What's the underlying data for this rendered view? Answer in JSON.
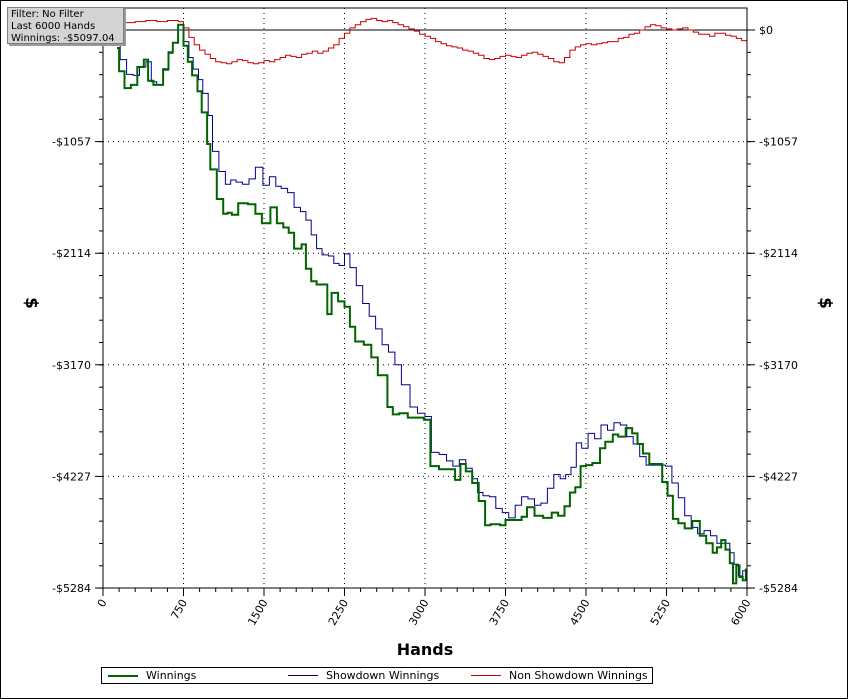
{
  "info": {
    "filter": "Filter: No Filter",
    "hands": "Last 6000 Hands",
    "winnings": "Winnings: -$5097.04"
  },
  "colors": {
    "winnings": "#006400",
    "showdown": "#00008b",
    "non_showdown": "#cc0000"
  },
  "chart_data": {
    "type": "line",
    "xlabel": "Hands",
    "ylabel": "$",
    "xlim": [
      0,
      6000
    ],
    "ylim": [
      -5284,
      0
    ],
    "x_ticks": [
      0,
      750,
      1500,
      2250,
      3000,
      3750,
      4500,
      5250,
      6000
    ],
    "x_tick_labels": [
      "0",
      "750",
      "1500",
      "2250",
      "3000",
      "3750",
      "4500",
      "5250",
      "6000"
    ],
    "y_ticks": [
      0,
      -1057,
      -2114,
      -3170,
      -4227,
      -5284
    ],
    "y_tick_labels": [
      "$0",
      "-$1057",
      "-$2114",
      "-$3170",
      "-$4227",
      "-$5284"
    ],
    "grid": true,
    "legend_position": "bottom",
    "series": [
      {
        "name": "Winnings",
        "x": [
          130,
          150,
          200,
          260,
          320,
          380,
          420,
          470,
          560,
          610,
          650,
          700,
          750,
          790,
          830,
          880,
          920,
          970,
          1000,
          1060,
          1120,
          1160,
          1200,
          1260,
          1350,
          1420,
          1480,
          1560,
          1620,
          1680,
          1730,
          1780,
          1850,
          1890,
          1940,
          1990,
          2050,
          2090,
          2130,
          2190,
          2250,
          2300,
          2350,
          2430,
          2500,
          2560,
          2650,
          2700,
          2760,
          2840,
          2920,
          2990,
          3050,
          3130,
          3210,
          3280,
          3330,
          3380,
          3440,
          3500,
          3560,
          3610,
          3650,
          3700,
          3750,
          3820,
          3900,
          3950,
          4020,
          4100,
          4180,
          4240,
          4300,
          4350,
          4400,
          4450,
          4500,
          4560,
          4630,
          4680,
          4750,
          4800,
          4870,
          4930,
          4980,
          5030,
          5090,
          5150,
          5210,
          5260,
          5310,
          5360,
          5420,
          5490,
          5560,
          5620,
          5680,
          5720,
          5760,
          5800,
          5840,
          5870,
          5900,
          5930,
          5960,
          5990
        ],
        "y": [
          -170,
          -390,
          -550,
          -520,
          -350,
          -280,
          -480,
          -520,
          -370,
          -210,
          -120,
          50,
          -150,
          -300,
          -430,
          -580,
          -780,
          -1080,
          -1320,
          -1600,
          -1740,
          -1730,
          -1750,
          -1640,
          -1650,
          -1740,
          -1830,
          -1680,
          -1830,
          -1870,
          -1920,
          -2070,
          -2030,
          -2260,
          -2380,
          -2410,
          -2410,
          -2690,
          -2490,
          -2570,
          -2620,
          -2810,
          -2950,
          -2980,
          -3100,
          -3270,
          -3570,
          -3640,
          -3630,
          -3670,
          -3670,
          -3690,
          -4130,
          -4160,
          -4160,
          -4260,
          -4110,
          -4180,
          -4290,
          -4460,
          -4690,
          -4680,
          -4680,
          -4690,
          -4640,
          -4640,
          -4610,
          -4520,
          -4600,
          -4620,
          -4570,
          -4600,
          -4510,
          -4380,
          -4330,
          -4130,
          -4120,
          -4100,
          -3960,
          -3900,
          -3830,
          -3850,
          -3770,
          -3820,
          -3920,
          -4010,
          -4110,
          -4110,
          -4280,
          -4410,
          -4630,
          -4670,
          -4720,
          -4650,
          -4790,
          -4860,
          -4950,
          -4900,
          -4830,
          -4920,
          -5050,
          -5240,
          -5070,
          -5180,
          -5210,
          -5100
        ]
      },
      {
        "name": "Showdown Winnings",
        "x": [
          130,
          160,
          220,
          280,
          340,
          400,
          450,
          500,
          560,
          610,
          650,
          700,
          750,
          800,
          840,
          890,
          930,
          980,
          1020,
          1080,
          1140,
          1190,
          1240,
          1300,
          1360,
          1420,
          1490,
          1550,
          1610,
          1660,
          1720,
          1780,
          1840,
          1890,
          1940,
          1990,
          2040,
          2100,
          2150,
          2200,
          2250,
          2300,
          2360,
          2420,
          2480,
          2540,
          2600,
          2660,
          2720,
          2780,
          2860,
          2930,
          3000,
          3060,
          3130,
          3200,
          3260,
          3320,
          3380,
          3440,
          3490,
          3540,
          3600,
          3660,
          3720,
          3780,
          3840,
          3900,
          3960,
          4020,
          4080,
          4140,
          4200,
          4260,
          4310,
          4360,
          4410,
          4460,
          4520,
          4580,
          4640,
          4700,
          4760,
          4820,
          4880,
          4940,
          5000,
          5060,
          5120,
          5180,
          5240,
          5300,
          5360,
          5420,
          5480,
          5540,
          5600,
          5660,
          5720,
          5780,
          5840,
          5880,
          5920,
          5960,
          6000
        ],
        "y": [
          -100,
          -280,
          -420,
          -430,
          -350,
          -300,
          -490,
          -520,
          -380,
          -220,
          -120,
          0,
          -110,
          -260,
          -370,
          -470,
          -600,
          -810,
          -1150,
          -1340,
          -1460,
          -1420,
          -1440,
          -1460,
          -1410,
          -1300,
          -1470,
          -1390,
          -1480,
          -1500,
          -1540,
          -1680,
          -1720,
          -1800,
          -1940,
          -2070,
          -2130,
          -2140,
          -2210,
          -2230,
          -2120,
          -2250,
          -2420,
          -2590,
          -2710,
          -2830,
          -2980,
          -3050,
          -3170,
          -3360,
          -3570,
          -3630,
          -3660,
          -4000,
          -4020,
          -4080,
          -4130,
          -4070,
          -4150,
          -4250,
          -4380,
          -4410,
          -4420,
          -4530,
          -4570,
          -4620,
          -4500,
          -4420,
          -4440,
          -4500,
          -4480,
          -4340,
          -4210,
          -4250,
          -4210,
          -4140,
          -3910,
          -3960,
          -3820,
          -3870,
          -3740,
          -3790,
          -3720,
          -3740,
          -3850,
          -3920,
          -4040,
          -4120,
          -4120,
          -4120,
          -4130,
          -4290,
          -4430,
          -4600,
          -4710,
          -4770,
          -4740,
          -4790,
          -4860,
          -4860,
          -4950,
          -5060,
          -5170,
          -5120,
          -5040
        ]
      },
      {
        "name": "Non Showdown Winnings",
        "x": [
          0,
          100,
          200,
          300,
          400,
          500,
          600,
          700,
          750,
          800,
          850,
          900,
          950,
          1000,
          1050,
          1100,
          1150,
          1200,
          1250,
          1300,
          1350,
          1400,
          1450,
          1500,
          1550,
          1600,
          1650,
          1700,
          1750,
          1800,
          1850,
          1900,
          1950,
          2000,
          2050,
          2100,
          2150,
          2200,
          2250,
          2300,
          2350,
          2400,
          2450,
          2500,
          2550,
          2600,
          2650,
          2700,
          2750,
          2800,
          2850,
          2900,
          2950,
          3000,
          3050,
          3100,
          3150,
          3200,
          3250,
          3300,
          3350,
          3400,
          3450,
          3500,
          3550,
          3600,
          3650,
          3700,
          3750,
          3800,
          3850,
          3900,
          3950,
          4000,
          4050,
          4100,
          4150,
          4200,
          4250,
          4300,
          4350,
          4400,
          4450,
          4500,
          4550,
          4600,
          4650,
          4700,
          4750,
          4800,
          4850,
          4900,
          4950,
          5000,
          5050,
          5100,
          5150,
          5200,
          5250,
          5300,
          5350,
          5400,
          5450,
          5500,
          5550,
          5600,
          5650,
          5700,
          5750,
          5800,
          5850,
          5900,
          5950,
          6000
        ],
        "y": [
          30,
          50,
          70,
          80,
          90,
          80,
          90,
          80,
          20,
          -70,
          -140,
          -190,
          -230,
          -270,
          -300,
          -310,
          -320,
          -300,
          -280,
          -290,
          -310,
          -320,
          -310,
          -290,
          -300,
          -280,
          -260,
          -240,
          -250,
          -260,
          -230,
          -220,
          -200,
          -220,
          -200,
          -170,
          -140,
          -80,
          -30,
          20,
          50,
          80,
          100,
          110,
          90,
          80,
          90,
          70,
          50,
          30,
          10,
          -10,
          -40,
          -60,
          -80,
          -110,
          -130,
          -150,
          -160,
          -170,
          -190,
          -200,
          -220,
          -240,
          -270,
          -280,
          -270,
          -250,
          -240,
          -250,
          -260,
          -240,
          -220,
          -210,
          -230,
          -250,
          -270,
          -300,
          -310,
          -260,
          -190,
          -160,
          -140,
          -130,
          -140,
          -130,
          -120,
          -110,
          -110,
          -80,
          -70,
          -40,
          -30,
          0,
          30,
          50,
          40,
          20,
          10,
          0,
          10,
          20,
          0,
          -20,
          -40,
          -40,
          -60,
          -30,
          -30,
          -50,
          -60,
          -80,
          -100,
          -150
        ]
      }
    ]
  }
}
